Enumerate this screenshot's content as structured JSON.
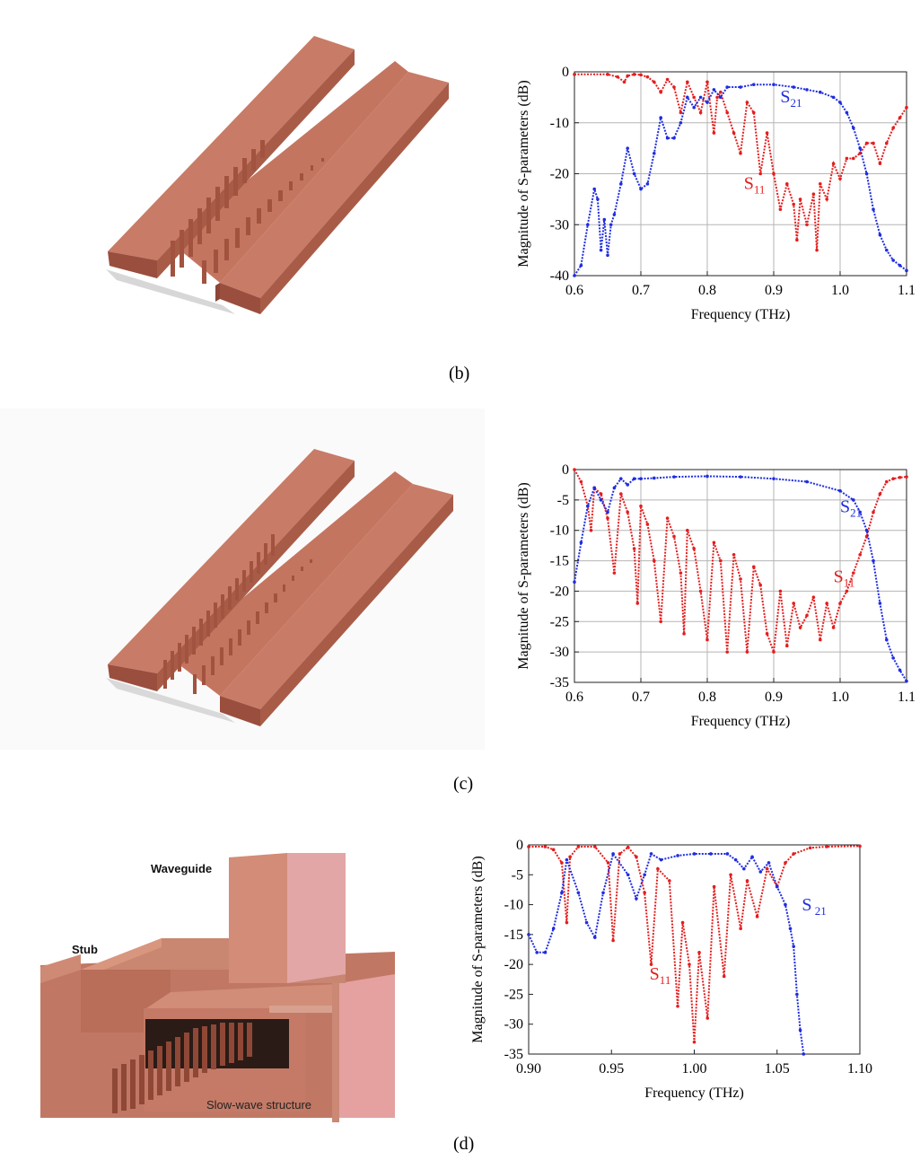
{
  "figure": {
    "captions": [
      "(b)",
      "(c)",
      "(d)"
    ],
    "illustration_d_labels": {
      "waveguide": "Waveguide",
      "stub": "Stub",
      "slow_wave": "Slow-wave structure"
    }
  },
  "colors": {
    "s11": "#e41e1e",
    "s21": "#1f2de0",
    "copper": "#b8644d"
  },
  "chart_data": [
    {
      "type": "line",
      "xlabel": "Frequency (THz)",
      "ylabel": "Magnitude of S-parameters (dB)",
      "xlim": [
        0.6,
        1.1
      ],
      "ylim": [
        -40,
        0
      ],
      "xticks": [
        0.6,
        0.7,
        0.8,
        0.9,
        1.0,
        1.1
      ],
      "xtick_labels": [
        "0.6",
        "0.7",
        "0.8",
        "0.9",
        "1.0",
        "1.1"
      ],
      "yticks": [
        0,
        -10,
        -20,
        -30,
        -40
      ],
      "ytick_labels": [
        "0",
        "-10",
        "-20",
        "-30",
        "-40"
      ],
      "grid": true,
      "series": [
        {
          "name": "S11",
          "color": "#e41e1e",
          "x": [
            0.6,
            0.65,
            0.665,
            0.675,
            0.68,
            0.69,
            0.7,
            0.71,
            0.72,
            0.73,
            0.74,
            0.75,
            0.76,
            0.77,
            0.78,
            0.79,
            0.8,
            0.81,
            0.815,
            0.82,
            0.83,
            0.84,
            0.85,
            0.86,
            0.87,
            0.88,
            0.89,
            0.9,
            0.91,
            0.92,
            0.93,
            0.935,
            0.94,
            0.95,
            0.96,
            0.965,
            0.97,
            0.98,
            0.99,
            1.0,
            1.01,
            1.02,
            1.03,
            1.04,
            1.05,
            1.06,
            1.07,
            1.08,
            1.09,
            1.1
          ],
          "y": [
            -0.5,
            -0.5,
            -1,
            -2,
            -0.8,
            -0.5,
            -0.6,
            -1,
            -2,
            -4,
            -1.5,
            -3,
            -8,
            -2,
            -5,
            -8,
            -2,
            -12,
            -5,
            -4,
            -8,
            -12,
            -16,
            -6,
            -8,
            -20,
            -12,
            -20,
            -27,
            -22,
            -26,
            -33,
            -25,
            -30,
            -24,
            -35,
            -22,
            -25,
            -18,
            -21,
            -17,
            -17,
            -16,
            -14,
            -14,
            -18,
            -14,
            -11,
            -9,
            -7
          ]
        },
        {
          "name": "S21",
          "color": "#1f2de0",
          "x": [
            0.6,
            0.61,
            0.62,
            0.63,
            0.635,
            0.64,
            0.645,
            0.65,
            0.655,
            0.66,
            0.67,
            0.68,
            0.69,
            0.7,
            0.71,
            0.72,
            0.73,
            0.74,
            0.75,
            0.76,
            0.77,
            0.78,
            0.79,
            0.8,
            0.81,
            0.82,
            0.83,
            0.85,
            0.87,
            0.9,
            0.93,
            0.95,
            0.97,
            0.99,
            1.0,
            1.01,
            1.02,
            1.03,
            1.04,
            1.05,
            1.06,
            1.07,
            1.08,
            1.09,
            1.1
          ],
          "y": [
            -40,
            -38,
            -30,
            -23,
            -25,
            -35,
            -29,
            -36,
            -30,
            -28,
            -22,
            -15,
            -20,
            -23,
            -22,
            -16,
            -9,
            -13,
            -13,
            -10,
            -5,
            -7,
            -5,
            -6,
            -3.5,
            -5,
            -3,
            -3,
            -2.5,
            -2.5,
            -3,
            -3.5,
            -4,
            -5,
            -6,
            -8,
            -11,
            -15,
            -20,
            -27,
            -32,
            -35,
            -37,
            -38,
            -39
          ]
        }
      ],
      "annotations": [
        {
          "text": "S",
          "sub": "21",
          "color": "#1f2de0",
          "x": 0.91,
          "y": -6
        },
        {
          "text": "S",
          "sub": "11",
          "color": "#e41e1e",
          "x": 0.855,
          "y": -23
        }
      ]
    },
    {
      "type": "line",
      "xlabel": "Frequency (THz)",
      "ylabel": "Magnitude of S-parameters (dB)",
      "xlim": [
        0.6,
        1.1
      ],
      "ylim": [
        -35,
        0
      ],
      "xticks": [
        0.6,
        0.7,
        0.8,
        0.9,
        1.0,
        1.1
      ],
      "xtick_labels": [
        "0.6",
        "0.7",
        "0.8",
        "0.9",
        "1.0",
        "1.1"
      ],
      "yticks": [
        0,
        -5,
        -10,
        -15,
        -20,
        -25,
        -30,
        -35
      ],
      "ytick_labels": [
        "0",
        "-5",
        "-10",
        "-15",
        "-20",
        "-25",
        "-30",
        "-35"
      ],
      "grid": true,
      "series": [
        {
          "name": "S11",
          "color": "#e41e1e",
          "x": [
            0.6,
            0.61,
            0.62,
            0.625,
            0.63,
            0.64,
            0.65,
            0.66,
            0.67,
            0.68,
            0.69,
            0.695,
            0.7,
            0.71,
            0.72,
            0.73,
            0.74,
            0.75,
            0.76,
            0.765,
            0.77,
            0.78,
            0.79,
            0.8,
            0.81,
            0.82,
            0.83,
            0.84,
            0.85,
            0.86,
            0.87,
            0.88,
            0.89,
            0.9,
            0.91,
            0.92,
            0.93,
            0.94,
            0.95,
            0.96,
            0.97,
            0.98,
            0.99,
            1.0,
            1.01,
            1.02,
            1.03,
            1.04,
            1.05,
            1.06,
            1.07,
            1.08,
            1.09,
            1.1
          ],
          "y": [
            0,
            -2,
            -6,
            -10,
            -3,
            -4,
            -8,
            -17,
            -4,
            -7,
            -13,
            -22,
            -6,
            -9,
            -15,
            -25,
            -8,
            -11,
            -17,
            -27,
            -10,
            -13,
            -20,
            -28,
            -12,
            -15,
            -30,
            -14,
            -18,
            -30,
            -16,
            -19,
            -27,
            -30,
            -20,
            -29,
            -22,
            -26,
            -24,
            -21,
            -28,
            -22,
            -26,
            -22,
            -20,
            -17,
            -14,
            -11,
            -7,
            -4,
            -2,
            -1.5,
            -1.3,
            -1.2
          ]
        },
        {
          "name": "S21",
          "color": "#1f2de0",
          "x": [
            0.6,
            0.61,
            0.62,
            0.63,
            0.64,
            0.65,
            0.66,
            0.67,
            0.68,
            0.69,
            0.7,
            0.72,
            0.75,
            0.8,
            0.85,
            0.9,
            0.95,
            1.0,
            1.02,
            1.03,
            1.04,
            1.05,
            1.06,
            1.07,
            1.08,
            1.09,
            1.1
          ],
          "y": [
            -18.5,
            -12,
            -6,
            -3,
            -5,
            -7,
            -3,
            -1.5,
            -2.5,
            -1.5,
            -1.5,
            -1.4,
            -1.2,
            -1.1,
            -1.2,
            -1.5,
            -2,
            -3.5,
            -5,
            -7,
            -10,
            -15,
            -22,
            -28,
            -31,
            -33,
            -34.8
          ]
        }
      ],
      "annotations": [
        {
          "text": "S",
          "sub": "21",
          "color": "#1f2de0",
          "x": 1.0,
          "y": -7
        },
        {
          "text": "S",
          "sub": "11",
          "color": "#e41e1e",
          "x": 0.99,
          "y": -18.5
        }
      ]
    },
    {
      "type": "line",
      "xlabel": "Frequency (THz)",
      "ylabel": "Magnitude of S-parameters (dB)",
      "xlim": [
        0.9,
        1.1
      ],
      "ylim": [
        -35,
        0
      ],
      "xticks": [
        0.9,
        0.95,
        1.0,
        1.05,
        1.1
      ],
      "xtick_labels": [
        "0.90",
        "0.95",
        "1.00",
        "1.05",
        "1.10"
      ],
      "yticks": [
        0,
        -5,
        -10,
        -15,
        -20,
        -25,
        -30,
        -35
      ],
      "ytick_labels": [
        "0",
        "-5",
        "-10",
        "-15",
        "-20",
        "-25",
        "-30",
        "-35"
      ],
      "grid": false,
      "series": [
        {
          "name": "S11",
          "color": "#e41e1e",
          "x": [
            0.9,
            0.91,
            0.915,
            0.92,
            0.923,
            0.925,
            0.93,
            0.94,
            0.948,
            0.951,
            0.955,
            0.96,
            0.965,
            0.97,
            0.974,
            0.978,
            0.985,
            0.99,
            0.993,
            0.997,
            1.0,
            1.003,
            1.008,
            1.012,
            1.018,
            1.022,
            1.028,
            1.032,
            1.038,
            1.044,
            1.05,
            1.055,
            1.06,
            1.07,
            1.08,
            1.1
          ],
          "y": [
            -0.3,
            -0.3,
            -0.8,
            -3,
            -13,
            -2,
            -0.3,
            -0.3,
            -3,
            -16,
            -1.5,
            -0.4,
            -2,
            -8,
            -20,
            -4,
            -6,
            -27,
            -13,
            -20,
            -33,
            -18,
            -29,
            -7,
            -22,
            -5,
            -14,
            -6,
            -12,
            -4,
            -7,
            -3,
            -1.5,
            -0.5,
            -0.3,
            -0.2
          ]
        },
        {
          "name": "S21",
          "color": "#1f2de0",
          "x": [
            0.9,
            0.905,
            0.91,
            0.915,
            0.92,
            0.923,
            0.93,
            0.935,
            0.94,
            0.945,
            0.951,
            0.96,
            0.965,
            0.97,
            0.974,
            0.98,
            0.99,
            1.0,
            1.01,
            1.02,
            1.025,
            1.03,
            1.035,
            1.04,
            1.045,
            1.05,
            1.055,
            1.058,
            1.06,
            1.062,
            1.064,
            1.066
          ],
          "y": [
            -15,
            -18,
            -18,
            -14,
            -8,
            -2.5,
            -8,
            -13,
            -15.5,
            -8,
            -1.5,
            -5,
            -9,
            -5,
            -1.5,
            -2.5,
            -1.8,
            -1.5,
            -1.5,
            -1.5,
            -2.5,
            -4,
            -2,
            -4.5,
            -3,
            -7,
            -10,
            -14,
            -17,
            -25,
            -31,
            -35
          ]
        }
      ],
      "annotations": [
        {
          "text": "S",
          "sub": " 21",
          "color": "#1f2de0",
          "x": 1.065,
          "y": -11
        },
        {
          "text": "S",
          "sub": "11",
          "color": "#e41e1e",
          "x": 0.973,
          "y": -22.5
        }
      ]
    }
  ]
}
